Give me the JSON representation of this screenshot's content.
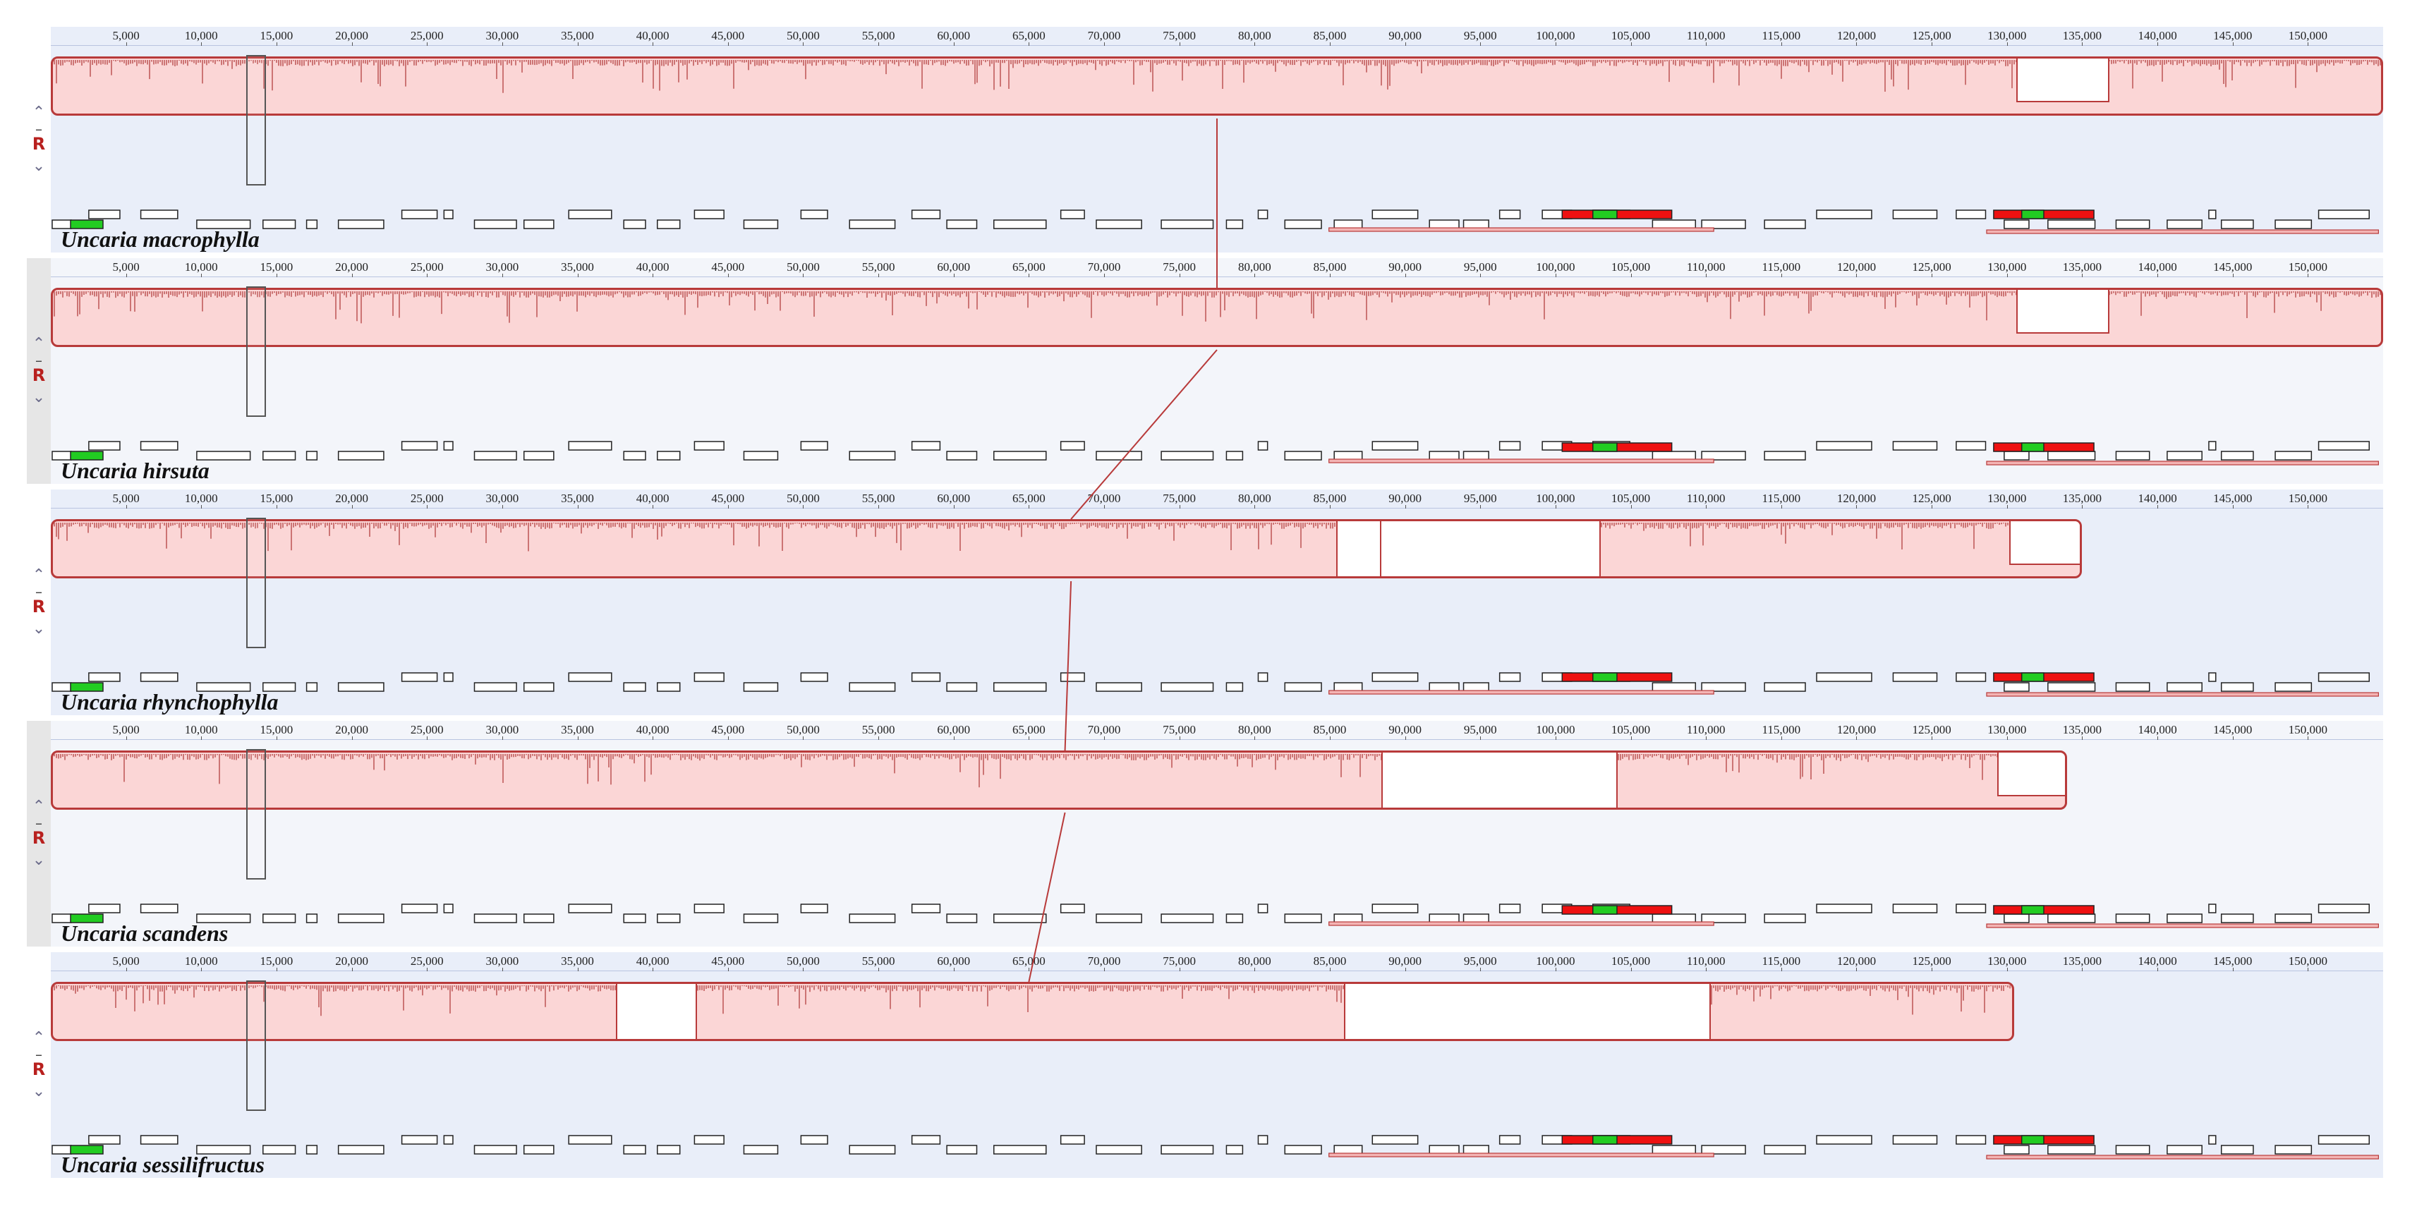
{
  "ruler_ticks": [
    "5,000",
    "10,000",
    "15,000",
    "20,000",
    "25,000",
    "30,000",
    "35,000",
    "40,000",
    "45,000",
    "50,000",
    "55,000",
    "60,000",
    "65,000",
    "70,000",
    "75,000",
    "80,000",
    "85,000",
    "90,000",
    "95,000",
    "100,000",
    "105,000",
    "110,000",
    "115,000",
    "120,000",
    "125,000",
    "130,000",
    "135,000",
    "140,000",
    "145,000",
    "150,000"
  ],
  "ruler_tick_values": [
    5000,
    10000,
    15000,
    20000,
    25000,
    30000,
    35000,
    40000,
    45000,
    50000,
    55000,
    60000,
    65000,
    70000,
    75000,
    80000,
    85000,
    90000,
    95000,
    100000,
    105000,
    110000,
    115000,
    120000,
    125000,
    130000,
    135000,
    140000,
    145000,
    150000
  ],
  "view_range_bp": [
    0,
    155000
  ],
  "controls": {
    "up_icon": "chevron-up-icon",
    "minus_label": "–",
    "reverse_label": "R",
    "down_icon": "chevron-down-icon"
  },
  "colors": {
    "lcb_fill": "#fbd6d6",
    "lcb_border": "#b83a3a",
    "gene_green": "#22cc22",
    "gene_red": "#ee1111",
    "panel_bg": "#e9eef9"
  },
  "genomes": [
    {
      "name": "Uncaria macrophylla",
      "lcb_range": [
        0,
        155000
      ],
      "gaps": [
        {
          "start": 130500,
          "end": 136500,
          "type": "partial"
        }
      ],
      "cursor_bp": [
        13000,
        14300
      ],
      "link_bp": 77500
    },
    {
      "name": "Uncaria hirsuta",
      "lcb_range": [
        0,
        155000
      ],
      "gaps": [
        {
          "start": 130500,
          "end": 136500,
          "type": "partial"
        }
      ],
      "cursor_bp": [
        13000,
        14300
      ],
      "link_bp": 77500
    },
    {
      "name": "Uncaria rhynchophylla",
      "lcb_range": [
        0,
        135000
      ],
      "gaps": [
        {
          "start": 85300,
          "end": 88200,
          "type": "full"
        },
        {
          "start": 88200,
          "end": 102700,
          "type": "full"
        },
        {
          "start": 130000,
          "end": 135000,
          "type": "partial"
        }
      ],
      "cursor_bp": [
        13000,
        14300
      ],
      "link_bp": 67800
    },
    {
      "name": "Uncaria scandens",
      "lcb_range": [
        0,
        134000
      ],
      "gaps": [
        {
          "start": 88300,
          "end": 103800,
          "type": "full"
        },
        {
          "start": 129200,
          "end": 134000,
          "type": "partial"
        }
      ],
      "cursor_bp": [
        13000,
        14300
      ],
      "link_bp": 67400
    },
    {
      "name": "Uncaria sessilifructus",
      "lcb_range": [
        0,
        130500
      ],
      "gaps": [
        {
          "start": 37400,
          "end": 42600,
          "type": "full"
        },
        {
          "start": 85800,
          "end": 110000,
          "type": "full"
        }
      ],
      "cursor_bp": [
        13000,
        14300
      ],
      "link_bp": 65000
    }
  ]
}
